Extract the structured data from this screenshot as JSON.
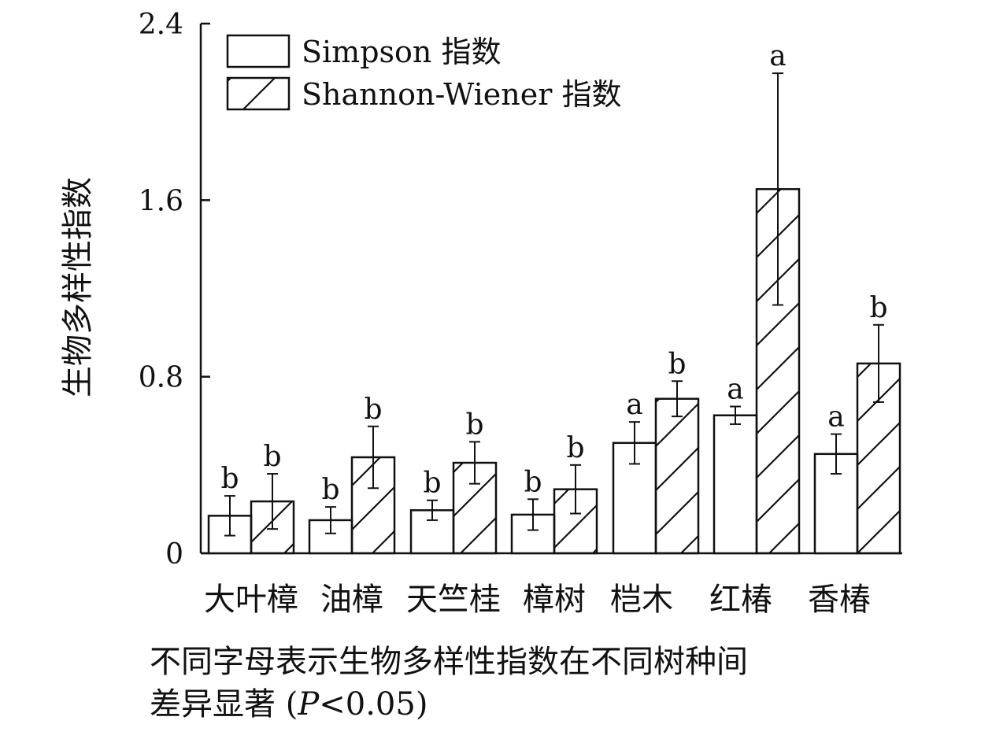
{
  "chart_data": {
    "type": "bar",
    "ylabel": "生物多样性指数",
    "ylim": [
      0,
      2.4
    ],
    "yticks": [
      "0",
      "0.8",
      "1.6",
      "2.4"
    ],
    "categories": [
      "大叶樟",
      "油樟",
      "天竺桂",
      "樟树",
      "桤木",
      "红椿",
      "香椿"
    ],
    "series": [
      {
        "name": "Simpson 指数",
        "pattern": "plain",
        "values": [
          0.17,
          0.15,
          0.195,
          0.175,
          0.5,
          0.625,
          0.45
        ],
        "errors": [
          0.09,
          0.06,
          0.045,
          0.07,
          0.095,
          0.04,
          0.09
        ],
        "letters": [
          "b",
          "b",
          "b",
          "b",
          "a",
          "a",
          "a"
        ]
      },
      {
        "name": "Shannon-Wiener 指数",
        "pattern": "hatch",
        "values": [
          0.235,
          0.435,
          0.41,
          0.29,
          0.7,
          1.65,
          0.86
        ],
        "errors": [
          0.125,
          0.14,
          0.095,
          0.11,
          0.08,
          0.525,
          0.175
        ],
        "letters": [
          "b",
          "b",
          "b",
          "b",
          "b",
          "a",
          "b"
        ]
      }
    ],
    "legend": "top-left",
    "grid": false,
    "colors": {
      "stroke": "#111111",
      "fill": "#ffffff"
    }
  },
  "caption": {
    "line1": "不同字母表示生物多样性指数在不同树种间",
    "line2_prefix": "差异显著 (",
    "line2_p": "P",
    "line2_suffix": "<0.05)"
  }
}
